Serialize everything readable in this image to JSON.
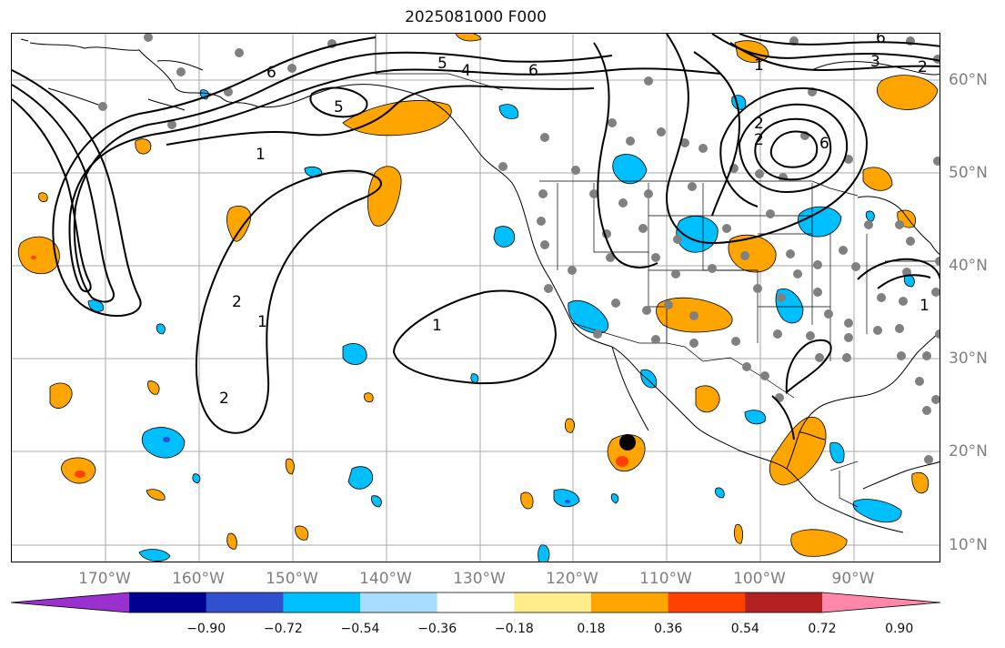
{
  "title": "2025081000 F000",
  "lat_labels": [
    "60°N",
    "50°N",
    "40°N",
    "30°N",
    "20°N",
    "10°N"
  ],
  "lon_labels": [
    "170°W",
    "160°W",
    "150°W",
    "140°W",
    "130°W",
    "120°W",
    "110°W",
    "100°W",
    "90°W"
  ],
  "contour_labels": [
    "1",
    "1",
    "1",
    "1",
    "1",
    "2",
    "2",
    "2",
    "2",
    "2",
    "3",
    "4",
    "5",
    "5",
    "6",
    "6",
    "6",
    "6"
  ],
  "colorbar": {
    "colors": [
      "#9b30d0",
      "#000090",
      "#3050d0",
      "#00bfff",
      "#aadcff",
      "#ffffff",
      "#ffec8b",
      "#ffa500",
      "#ff4000",
      "#b22222",
      "#ff88aa"
    ],
    "tick_labels": [
      "−0.90",
      "−0.72",
      "−0.54",
      "−0.36",
      "−0.18",
      "0.18",
      "0.36",
      "0.54",
      "0.72",
      "0.90"
    ]
  }
}
